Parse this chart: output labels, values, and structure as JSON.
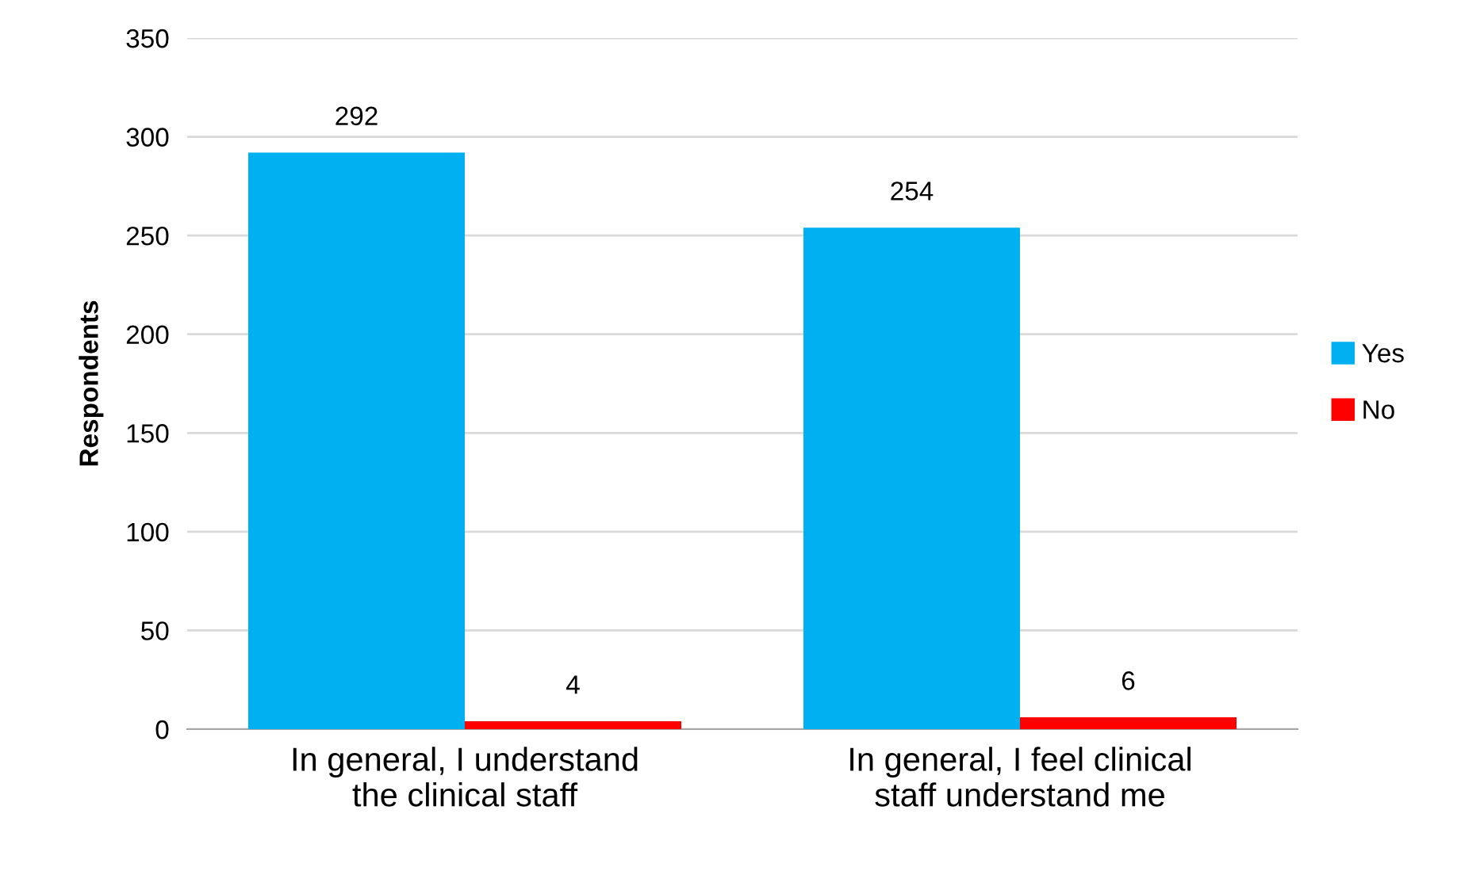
{
  "chart_data": {
    "type": "bar",
    "ylabel": "Respondents",
    "categories": [
      "In general, I understand\nthe clinical staff",
      "In general, I feel clinical\nstaff understand me"
    ],
    "series": [
      {
        "name": "Yes",
        "color": "#00b0f0",
        "values": [
          292,
          254
        ]
      },
      {
        "name": "No",
        "color": "#ff0000",
        "values": [
          4,
          6
        ]
      }
    ],
    "ylim": [
      0,
      350
    ],
    "yticks": [
      0,
      50,
      100,
      150,
      200,
      250,
      300,
      350
    ],
    "grid": "y",
    "legend": "right",
    "data_labels": true
  }
}
